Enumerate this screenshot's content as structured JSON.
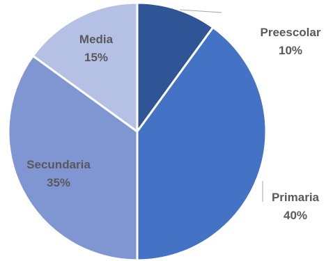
{
  "chart_data": {
    "type": "pie",
    "title": "",
    "slices": [
      {
        "label": "Preescolar",
        "value": 10,
        "value_label": "10%",
        "color": "#2F5597"
      },
      {
        "label": "Primaria",
        "value": 40,
        "value_label": "40%",
        "color": "#4472C4"
      },
      {
        "label": "Secundaria",
        "value": 35,
        "value_label": "35%",
        "color": "#7F96D3"
      },
      {
        "label": "Media",
        "value": 15,
        "value_label": "15%",
        "color": "#B4C0E4"
      }
    ],
    "start_angle_deg": 0,
    "direction": "clockwise",
    "slice_separator_color": "#FFFFFF",
    "leader_line_color": "#A6A6A6",
    "label_color": "#595959",
    "legend": "none"
  }
}
